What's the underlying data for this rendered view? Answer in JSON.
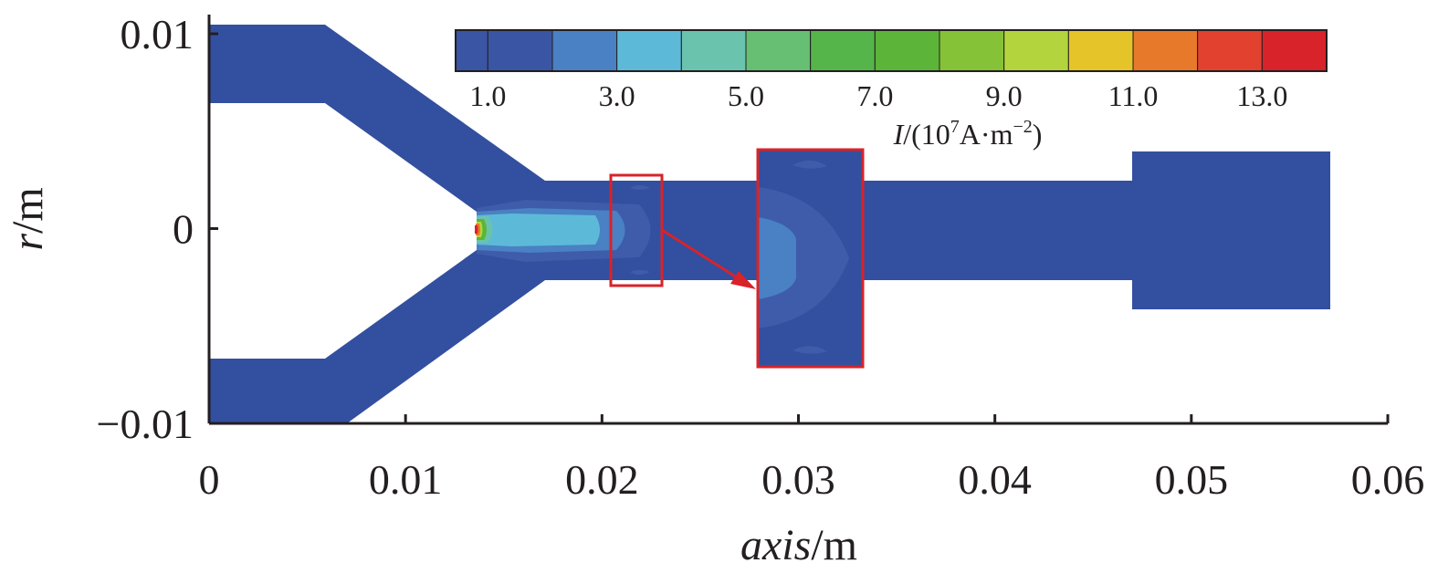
{
  "chart_data": {
    "type": "heatmap",
    "title": "",
    "xlabel": {
      "italic": "axis",
      "unit": "/m"
    },
    "ylabel": {
      "italic": "r",
      "unit": "/m"
    },
    "xlim": [
      0,
      0.06
    ],
    "ylim": [
      -0.01,
      0.01
    ],
    "x_ticks": [
      {
        "value": 0,
        "label": "0"
      },
      {
        "value": 0.01,
        "label": "0.01"
      },
      {
        "value": 0.02,
        "label": "0.02"
      },
      {
        "value": 0.03,
        "label": "0.03"
      },
      {
        "value": 0.04,
        "label": "0.04"
      },
      {
        "value": 0.05,
        "label": "0.05"
      },
      {
        "value": 0.06,
        "label": "0.06"
      }
    ],
    "y_ticks": [
      {
        "value": 0.01,
        "label": "0.01"
      },
      {
        "value": 0,
        "label": "0"
      },
      {
        "value": -0.01,
        "label": "−0.01"
      }
    ],
    "colorbar": {
      "title": {
        "italic": "I",
        "base": "/(10",
        "exp": "7",
        "mid": "A·m",
        "exp2": "−2",
        "end": ")"
      },
      "levels": [
        0.5,
        1.0,
        2.0,
        3.0,
        4.0,
        5.0,
        6.0,
        7.0,
        8.0,
        9.0,
        10.0,
        11.0,
        12.0,
        13.0,
        14.0
      ],
      "colors": [
        "#3a55a4",
        "#3a55a4",
        "#4a80c4",
        "#5cbad8",
        "#6ac4ad",
        "#66bf73",
        "#56b54a",
        "#5cb538",
        "#86c237",
        "#b3d43c",
        "#e5c42a",
        "#e7792b",
        "#e24130",
        "#d8232a"
      ],
      "tick_labels": [
        {
          "value": 1.0,
          "label": "1.0"
        },
        {
          "value": 3.0,
          "label": "3.0"
        },
        {
          "value": 5.0,
          "label": "5.0"
        },
        {
          "value": 7.0,
          "label": "7.0"
        },
        {
          "value": 9.0,
          "label": "9.0"
        },
        {
          "value": 11.0,
          "label": "11.0"
        },
        {
          "value": 13.0,
          "label": "13.0"
        }
      ],
      "placement": "top-right inside plot"
    },
    "domain_fill_color": "#334f9f",
    "highlight_color": "#d8232a",
    "peak_current_density": 14.0,
    "peak_location": {
      "x": 0.0137,
      "r": 0
    },
    "detail_region": {
      "x": [
        0.0205,
        0.023
      ],
      "r": [
        -0.0028,
        0.0028
      ]
    },
    "zoom_inset": true
  }
}
